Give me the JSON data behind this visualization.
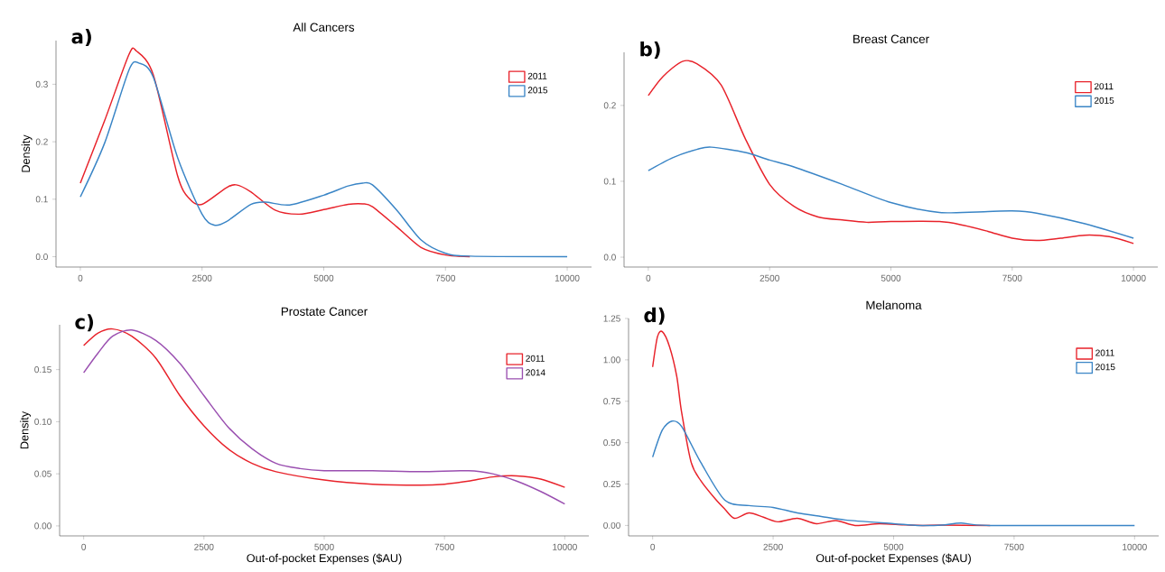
{
  "chart_data": [
    {
      "type": "line",
      "title": "All Cancers",
      "ylabel": "Density",
      "annotations": [
        "a)"
      ],
      "legend": "top right",
      "xlim": [
        -500,
        10500
      ],
      "ylim": [
        -0.018,
        0.376
      ],
      "xticks": [
        0,
        2500,
        5000,
        7500,
        10000
      ],
      "yticks": [
        {
          "value": 0,
          "label": "0.0"
        },
        {
          "value": 0.1,
          "label": "0.1"
        },
        {
          "value": 0.2,
          "label": "0.2"
        },
        {
          "value": 0.3,
          "label": "0.3"
        }
      ],
      "series": [
        {
          "name": "2011",
          "color": "#e8222a",
          "x": [
            0,
            500,
            1000,
            1150,
            1500,
            2000,
            2250,
            2500,
            3000,
            3200,
            3500,
            4000,
            4500,
            5000,
            5500,
            5800,
            6000,
            6500,
            7000,
            7500,
            8000
          ],
          "values": [
            0.128,
            0.237,
            0.352,
            0.358,
            0.316,
            0.14,
            0.1,
            0.091,
            0.12,
            0.125,
            0.113,
            0.081,
            0.074,
            0.082,
            0.091,
            0.092,
            0.087,
            0.052,
            0.016,
            0.003,
            0.0
          ]
        },
        {
          "name": "2015",
          "color": "#3a85c6",
          "x": [
            0,
            500,
            1000,
            1200,
            1500,
            2000,
            2500,
            2750,
            3000,
            3500,
            3800,
            4300,
            5000,
            5500,
            5800,
            6000,
            6500,
            7000,
            7500,
            8000,
            10000
          ],
          "values": [
            0.104,
            0.198,
            0.325,
            0.337,
            0.312,
            0.172,
            0.074,
            0.055,
            0.061,
            0.091,
            0.095,
            0.09,
            0.107,
            0.123,
            0.128,
            0.125,
            0.081,
            0.029,
            0.006,
            0.001,
            0.0
          ]
        }
      ]
    },
    {
      "type": "line",
      "title": "Breast Cancer",
      "annotations": [
        "b)"
      ],
      "legend": "top right",
      "xlim": [
        -500,
        10500
      ],
      "ylim": [
        -0.013,
        0.27
      ],
      "xticks": [
        0,
        2500,
        5000,
        7500,
        10000
      ],
      "yticks": [
        {
          "value": 0,
          "label": "0.0"
        },
        {
          "value": 0.1,
          "label": "0.1"
        },
        {
          "value": 0.2,
          "label": "0.2"
        }
      ],
      "series": [
        {
          "name": "2011",
          "color": "#e8222a",
          "x": [
            0,
            300,
            700,
            1000,
            1500,
            2000,
            2500,
            3000,
            3500,
            4000,
            4500,
            5000,
            6000,
            6500,
            7000,
            7500,
            8000,
            8500,
            9000,
            9500,
            10000
          ],
          "values": [
            0.213,
            0.238,
            0.258,
            0.255,
            0.227,
            0.156,
            0.096,
            0.067,
            0.053,
            0.049,
            0.046,
            0.047,
            0.047,
            0.042,
            0.034,
            0.025,
            0.022,
            0.025,
            0.029,
            0.027,
            0.018
          ]
        },
        {
          "name": "2015",
          "color": "#3a85c6",
          "x": [
            0,
            500,
            1000,
            1300,
            2000,
            2500,
            3000,
            4000,
            5000,
            6000,
            7000,
            7500,
            8000,
            9000,
            10000
          ],
          "values": [
            0.114,
            0.131,
            0.142,
            0.145,
            0.138,
            0.128,
            0.119,
            0.096,
            0.072,
            0.059,
            0.06,
            0.061,
            0.058,
            0.044,
            0.025
          ]
        }
      ]
    },
    {
      "type": "line",
      "title": "Prostate Cancer",
      "xlabel": "Out-of-pocket Expenses ($AU)",
      "ylabel": "Density",
      "annotations": [
        "c)"
      ],
      "legend": "top right",
      "xlim": [
        -500,
        10500
      ],
      "ylim": [
        -0.0096,
        0.193
      ],
      "xticks": [
        0,
        2500,
        5000,
        7500,
        10000
      ],
      "yticks": [
        {
          "value": 0,
          "label": "0.00"
        },
        {
          "value": 0.05,
          "label": "0.05"
        },
        {
          "value": 0.1,
          "label": "0.10"
        },
        {
          "value": 0.15,
          "label": "0.15"
        }
      ],
      "series": [
        {
          "name": "2011",
          "color": "#e8222a",
          "x": [
            0,
            300,
            600,
            1000,
            1500,
            2000,
            2500,
            3000,
            3500,
            4000,
            5000,
            6000,
            7000,
            7500,
            8000,
            8500,
            9000,
            9500,
            10000
          ],
          "values": [
            0.173,
            0.185,
            0.189,
            0.182,
            0.161,
            0.125,
            0.096,
            0.074,
            0.06,
            0.052,
            0.044,
            0.04,
            0.039,
            0.04,
            0.043,
            0.047,
            0.048,
            0.045,
            0.037
          ]
        },
        {
          "name": "2014",
          "color": "#9a4fb0",
          "x": [
            0,
            300,
            600,
            1000,
            1500,
            2000,
            2500,
            3000,
            3500,
            4000,
            4500,
            5000,
            6000,
            7000,
            8000,
            8500,
            9000,
            9500,
            10000
          ],
          "values": [
            0.147,
            0.166,
            0.182,
            0.188,
            0.178,
            0.156,
            0.125,
            0.095,
            0.074,
            0.06,
            0.055,
            0.053,
            0.053,
            0.052,
            0.053,
            0.05,
            0.043,
            0.033,
            0.021
          ]
        }
      ]
    },
    {
      "type": "line",
      "title": "Melanoma",
      "xlabel": "Out-of-pocket Expenses ($AU)",
      "annotations": [
        "d)"
      ],
      "legend": "top right",
      "xlim": [
        -500,
        10500
      ],
      "ylim": [
        -0.063,
        1.25
      ],
      "xticks": [
        0,
        2500,
        5000,
        7500,
        10000
      ],
      "yticks": [
        {
          "value": 0,
          "label": "0.00"
        },
        {
          "value": 0.25,
          "label": "0.25"
        },
        {
          "value": 0.5,
          "label": "0.50"
        },
        {
          "value": 0.75,
          "label": "0.75"
        },
        {
          "value": 1.0,
          "label": "1.00"
        },
        {
          "value": 1.25,
          "label": "1.25"
        }
      ],
      "series": [
        {
          "name": "2011",
          "color": "#e8222a",
          "x": [
            0,
            100,
            200,
            350,
            500,
            600,
            800,
            1000,
            1300,
            1500,
            1700,
            2000,
            2300,
            2600,
            3000,
            3400,
            3800,
            4200,
            4700,
            5200,
            5600,
            6000,
            7000
          ],
          "values": [
            0.957,
            1.14,
            1.17,
            1.08,
            0.9,
            0.685,
            0.38,
            0.27,
            0.16,
            0.098,
            0.043,
            0.076,
            0.05,
            0.022,
            0.043,
            0.011,
            0.03,
            0.0,
            0.011,
            0.004,
            0.0,
            0.002,
            0.0
          ]
        },
        {
          "name": "2015",
          "color": "#3a85c6",
          "x": [
            0,
            200,
            400,
            600,
            1000,
            1500,
            2000,
            2500,
            3000,
            3500,
            4000,
            5000,
            5500,
            6000,
            6400,
            7000,
            10000
          ],
          "values": [
            0.413,
            0.576,
            0.63,
            0.598,
            0.38,
            0.152,
            0.12,
            0.109,
            0.076,
            0.054,
            0.033,
            0.011,
            0.0,
            0.002,
            0.015,
            0.0,
            0.0
          ]
        }
      ]
    }
  ]
}
